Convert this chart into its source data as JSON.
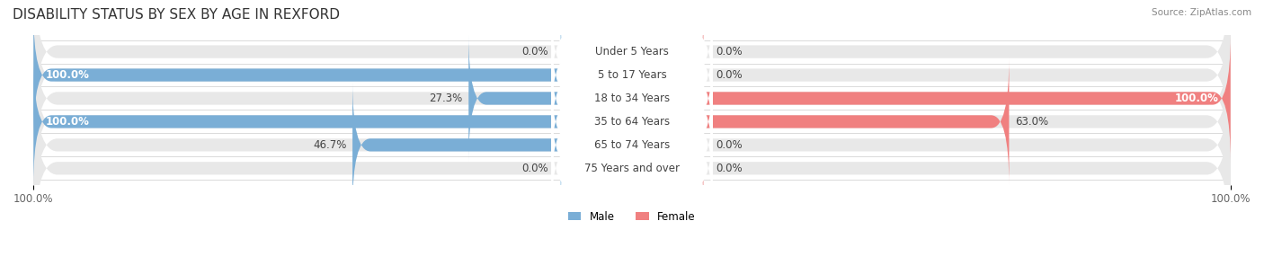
{
  "title": "DISABILITY STATUS BY SEX BY AGE IN REXFORD",
  "source": "Source: ZipAtlas.com",
  "categories": [
    "Under 5 Years",
    "5 to 17 Years",
    "18 to 34 Years",
    "35 to 64 Years",
    "65 to 74 Years",
    "75 Years and over"
  ],
  "male_values": [
    0.0,
    100.0,
    27.3,
    100.0,
    46.7,
    0.0
  ],
  "female_values": [
    0.0,
    0.0,
    100.0,
    63.0,
    0.0,
    0.0
  ],
  "male_color": "#7aaed6",
  "female_color": "#f08080",
  "male_light": "#c5dff0",
  "female_light": "#f5c0c0",
  "bar_bg": "#e8e8e8",
  "bar_height": 0.55,
  "xlim": 100.0,
  "title_fontsize": 11,
  "label_fontsize": 8.5,
  "tick_fontsize": 8.5,
  "category_fontsize": 8.5,
  "fig_bg": "#ffffff",
  "ax_bg": "#ffffff"
}
